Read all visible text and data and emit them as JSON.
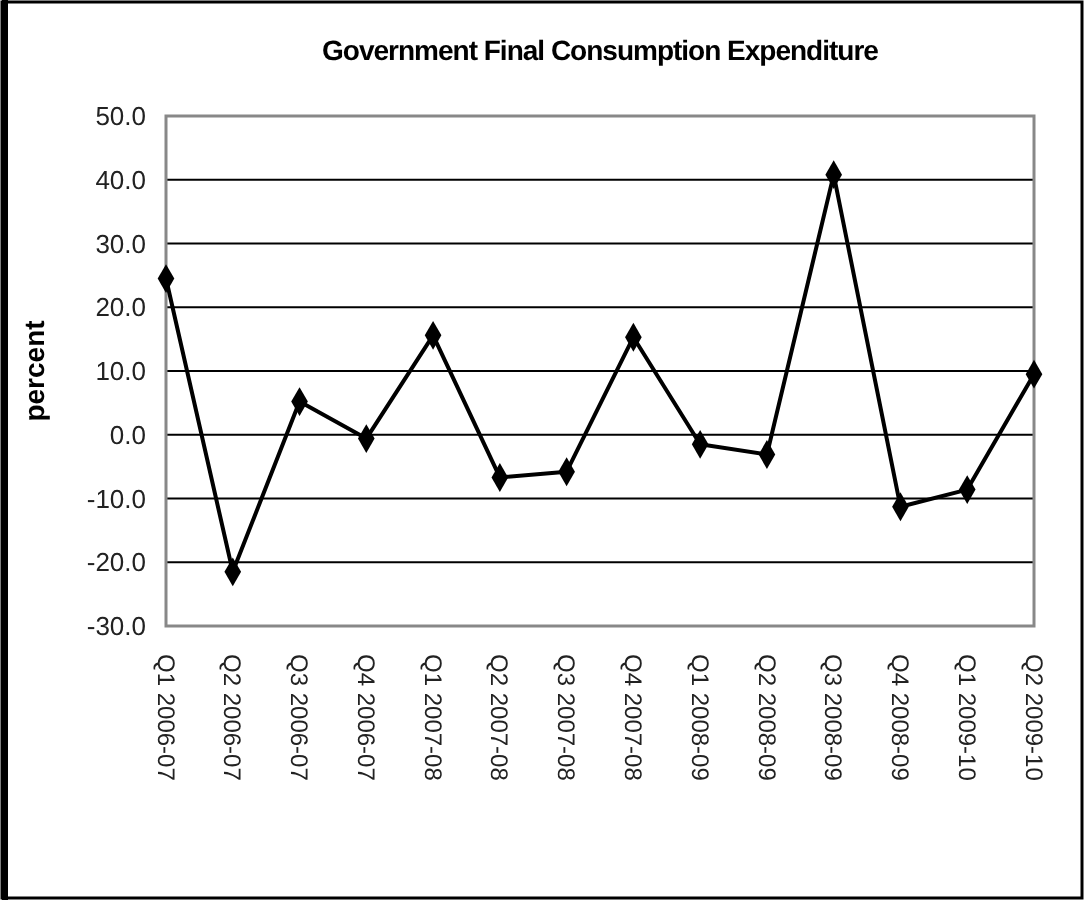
{
  "chart_data": {
    "type": "line",
    "title": "Government Final Consumption Expenditure",
    "ylabel": "percent",
    "categories": [
      "Q1 2006-07",
      "Q2 2006-07",
      "Q3 2006-07",
      "Q4 2006-07",
      "Q1 2007-08",
      "Q2 2007-08",
      "Q3 2007-08",
      "Q4 2007-08",
      "Q1 2008-09",
      "Q2 2008-09",
      "Q3 2008-09",
      "Q4 2008-09",
      "Q1 2009-10",
      "Q2 2009-10"
    ],
    "series": [
      {
        "color": "#000000",
        "values": [
          24.5,
          -21.5,
          5.2,
          -0.6,
          15.6,
          -6.7,
          -5.8,
          15.3,
          -1.5,
          -3.1,
          40.8,
          -11.3,
          -8.6,
          9.5
        ]
      }
    ],
    "ylim": [
      -30,
      50
    ],
    "yticks": [
      {
        "value": -30,
        "label": "-30.0"
      },
      {
        "value": -20,
        "label": "-20.0"
      },
      {
        "value": -10,
        "label": "-10.0"
      },
      {
        "value": 0,
        "label": "0.0"
      },
      {
        "value": 10,
        "label": "10.0"
      },
      {
        "value": 20,
        "label": "20.0"
      },
      {
        "value": 30,
        "label": "30.0"
      },
      {
        "value": 40,
        "label": "40.0"
      },
      {
        "value": 50,
        "label": "50.0"
      }
    ],
    "grid": "y",
    "marker": "diamond",
    "line_style": "solid"
  }
}
